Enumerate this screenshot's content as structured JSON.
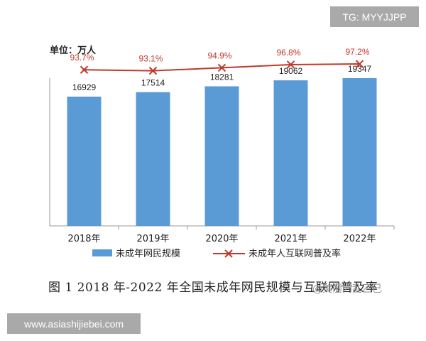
{
  "overlays": {
    "tag": "TG: MYYJJPP",
    "site": "www.asiashijiebei.com",
    "watermark": "@美丽闪乱乙己"
  },
  "chart_data": {
    "type": "bar",
    "unit_label": "单位：万人",
    "categories": [
      "2018年",
      "2019年",
      "2020年",
      "2021年",
      "2022年"
    ],
    "series": [
      {
        "name": "未成年网民规模",
        "type": "bar",
        "values": [
          16929,
          17514,
          18281,
          19062,
          19347
        ],
        "color": "#5b9bd5"
      },
      {
        "name": "未成年人互联网普及率",
        "type": "line",
        "values": [
          93.7,
          93.1,
          94.9,
          96.8,
          97.2
        ],
        "labels": [
          "93.7%",
          "93.1%",
          "94.9%",
          "96.8%",
          "97.2%"
        ],
        "color": "#c0392b"
      }
    ],
    "bar_ylim": [
      0,
      24000
    ],
    "line_ylim": [
      0,
      110
    ],
    "grid": false,
    "legend_position": "bottom",
    "caption": "图 1 2018 年-2022 年全国未成年网民规模与互联网普及率"
  }
}
